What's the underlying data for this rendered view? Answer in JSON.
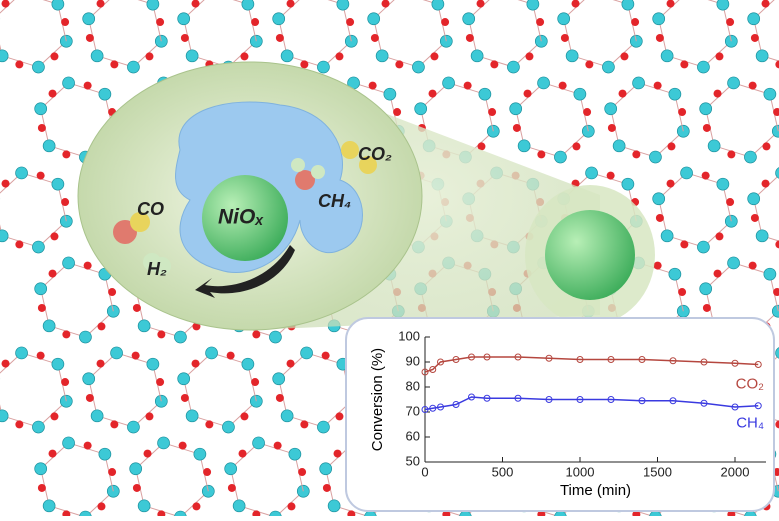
{
  "illustration": {
    "labels": [
      "CO",
      "H₂",
      "NiOₓ",
      "CH₄",
      "CO₂"
    ]
  },
  "chart_data": {
    "type": "line",
    "x_label": "Time (min)",
    "y_label": "Conversion (%)",
    "x": [
      0,
      50,
      100,
      200,
      300,
      400,
      600,
      800,
      1000,
      1200,
      1400,
      1600,
      1800,
      2000,
      2150
    ],
    "series": [
      {
        "name": "CO₂",
        "color": "#b5473f",
        "values": [
          86,
          87,
          90,
          91,
          92,
          92,
          92,
          91.5,
          91,
          91,
          91,
          90.5,
          90,
          89.5,
          89
        ]
      },
      {
        "name": "CH₄",
        "color": "#3a3ae0",
        "values": [
          71,
          71.5,
          72,
          73,
          76,
          75.5,
          75.5,
          75,
          75,
          75,
          74.5,
          74.5,
          73.5,
          72,
          72.5
        ]
      }
    ],
    "xlim": [
      0,
      2200
    ],
    "xticks": [
      0,
      500,
      1000,
      1500,
      2000
    ],
    "ylim": [
      50,
      100
    ],
    "yticks": [
      50,
      60,
      70,
      80,
      90,
      100
    ]
  }
}
